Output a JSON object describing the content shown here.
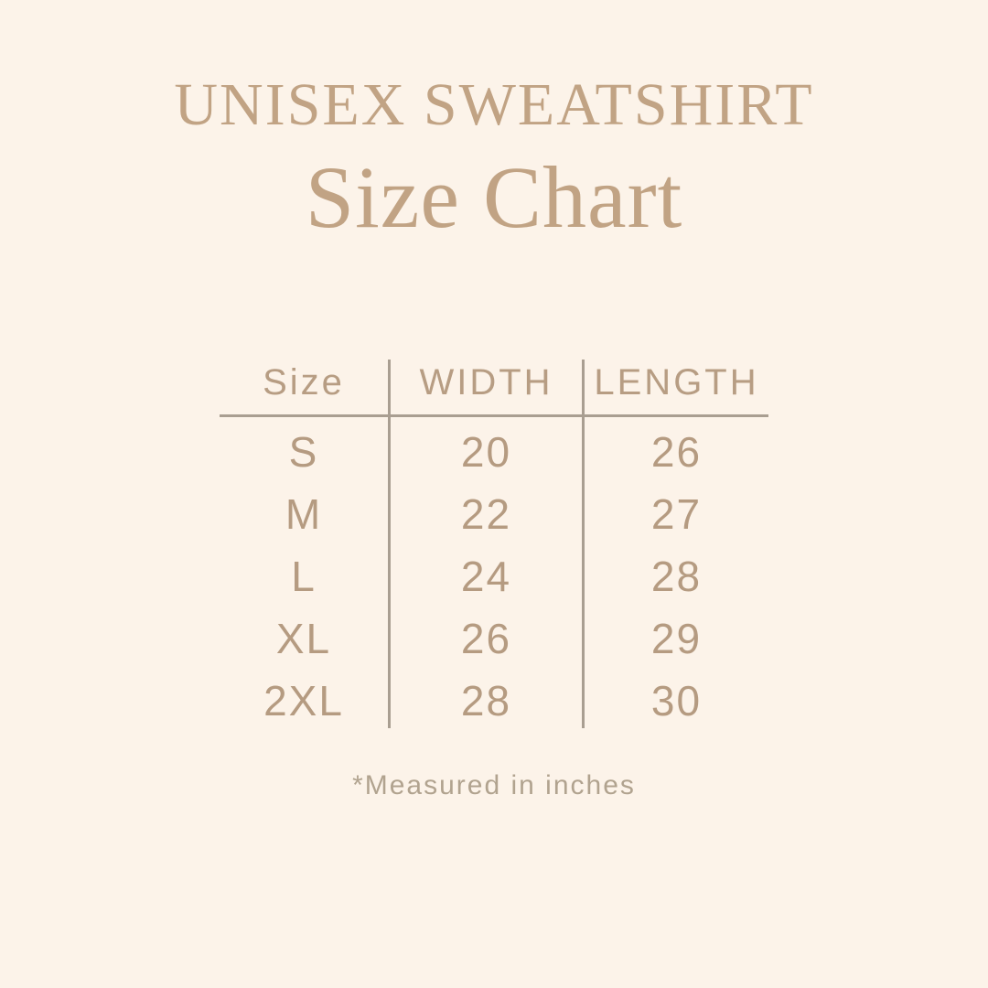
{
  "title": "UNISEX SWEATSHIRT",
  "subtitle": "Size Chart",
  "table": {
    "headers": [
      "Size",
      "WIDTH",
      "LENGTH"
    ],
    "rows": [
      [
        "S",
        "20",
        "26"
      ],
      [
        "M",
        "22",
        "27"
      ],
      [
        "L",
        "24",
        "28"
      ],
      [
        "XL",
        "26",
        "29"
      ],
      [
        "2XL",
        "28",
        "30"
      ]
    ]
  },
  "footnote": "*Measured in inches",
  "colors": {
    "background": "#fcf3e9",
    "title_text": "#c1a384",
    "table_text": "#b59b81",
    "divider_lines": "#a99e91",
    "footnote_text": "#b1a38f"
  },
  "chart_data": {
    "type": "table",
    "title": "UNISEX SWEATSHIRT Size Chart",
    "columns": [
      "Size",
      "WIDTH",
      "LENGTH"
    ],
    "rows": [
      [
        "S",
        20,
        26
      ],
      [
        "M",
        22,
        27
      ],
      [
        "L",
        24,
        28
      ],
      [
        "XL",
        26,
        29
      ],
      [
        "2XL",
        28,
        30
      ]
    ],
    "units": "inches",
    "footnote": "*Measured in inches"
  }
}
